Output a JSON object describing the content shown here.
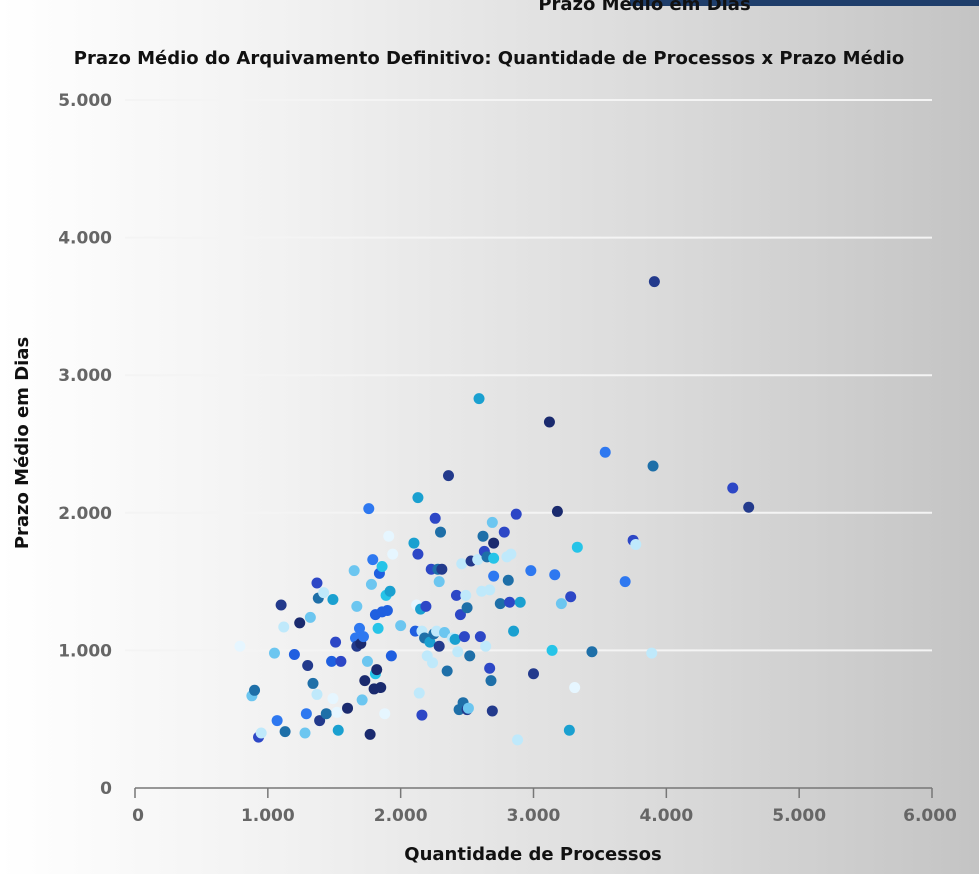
{
  "header": {
    "partial_title": "Prazo Médio em Dias"
  },
  "colors": {
    "point_palette": [
      "#1a2a6e",
      "#233a8c",
      "#2d47c6",
      "#1f5fe0",
      "#2e78f0",
      "#1e6fa8",
      "#1aa0d0",
      "#26c4e8",
      "#6cc6f0",
      "#bfe9fb",
      "#e6f6ff"
    ],
    "accent_bar": "#1f3e6b"
  },
  "chart_data": {
    "type": "scatter",
    "title": "Prazo Médio do Arquivamento Definitivo: Quantidade de Processos x Prazo Médio",
    "xlabel": "Quantidade de Processos",
    "ylabel": "Prazo Médio em Dias",
    "xlim": [
      0,
      6000
    ],
    "ylim": [
      0,
      5000
    ],
    "x_ticks": [
      "0",
      "1.000",
      "2.000",
      "3.000",
      "4.000",
      "5.000",
      "6.000"
    ],
    "y_ticks": [
      "0",
      "1.000",
      "2.000",
      "3.000",
      "4.000",
      "5.000"
    ],
    "grid": "horizontal",
    "points": [
      [
        790,
        1030
      ],
      [
        880,
        670
      ],
      [
        900,
        710
      ],
      [
        930,
        370
      ],
      [
        950,
        400
      ],
      [
        1050,
        980
      ],
      [
        1070,
        490
      ],
      [
        1100,
        1330
      ],
      [
        1120,
        1170
      ],
      [
        1130,
        410
      ],
      [
        1200,
        970
      ],
      [
        1240,
        1200
      ],
      [
        1280,
        400
      ],
      [
        1290,
        540
      ],
      [
        1300,
        890
      ],
      [
        1320,
        1240
      ],
      [
        1340,
        760
      ],
      [
        1370,
        1490
      ],
      [
        1370,
        680
      ],
      [
        1380,
        1380
      ],
      [
        1390,
        490
      ],
      [
        1420,
        1420
      ],
      [
        1440,
        540
      ],
      [
        1480,
        920
      ],
      [
        1490,
        650
      ],
      [
        1490,
        1370
      ],
      [
        1510,
        1060
      ],
      [
        1520,
        550
      ],
      [
        1530,
        420
      ],
      [
        1550,
        920
      ],
      [
        1600,
        580
      ],
      [
        1650,
        1580
      ],
      [
        1660,
        1090
      ],
      [
        1670,
        1030
      ],
      [
        1670,
        1320
      ],
      [
        1690,
        1160
      ],
      [
        1700,
        1050
      ],
      [
        1710,
        640
      ],
      [
        1720,
        1100
      ],
      [
        1730,
        780
      ],
      [
        1750,
        920
      ],
      [
        1760,
        2030
      ],
      [
        1770,
        390
      ],
      [
        1780,
        1480
      ],
      [
        1790,
        1660
      ],
      [
        1800,
        720
      ],
      [
        1810,
        830
      ],
      [
        1810,
        1260
      ],
      [
        1820,
        860
      ],
      [
        1830,
        1160
      ],
      [
        1840,
        1560
      ],
      [
        1850,
        730
      ],
      [
        1860,
        1610
      ],
      [
        1860,
        1280
      ],
      [
        1880,
        540
      ],
      [
        1890,
        1400
      ],
      [
        1900,
        1290
      ],
      [
        1910,
        1830
      ],
      [
        1920,
        1430
      ],
      [
        1930,
        960
      ],
      [
        1940,
        1700
      ],
      [
        2000,
        1180
      ],
      [
        2100,
        1780
      ],
      [
        2110,
        1140
      ],
      [
        2120,
        1330
      ],
      [
        2130,
        2110
      ],
      [
        2130,
        1700
      ],
      [
        2140,
        690
      ],
      [
        2150,
        1300
      ],
      [
        2160,
        530
      ],
      [
        2160,
        1140
      ],
      [
        2180,
        1090
      ],
      [
        2190,
        1320
      ],
      [
        2200,
        960
      ],
      [
        2220,
        1060
      ],
      [
        2230,
        1590
      ],
      [
        2240,
        910
      ],
      [
        2250,
        1120
      ],
      [
        2260,
        1960
      ],
      [
        2270,
        1140
      ],
      [
        2280,
        1590
      ],
      [
        2290,
        1030
      ],
      [
        2290,
        1500
      ],
      [
        2300,
        1860
      ],
      [
        2310,
        1590
      ],
      [
        2330,
        1130
      ],
      [
        2350,
        850
      ],
      [
        2360,
        2270
      ],
      [
        2390,
        1090
      ],
      [
        2410,
        1080
      ],
      [
        2420,
        1400
      ],
      [
        2430,
        990
      ],
      [
        2440,
        570
      ],
      [
        2450,
        1260
      ],
      [
        2460,
        1630
      ],
      [
        2470,
        620
      ],
      [
        2480,
        1100
      ],
      [
        2490,
        1400
      ],
      [
        2500,
        1310
      ],
      [
        2500,
        570
      ],
      [
        2510,
        580
      ],
      [
        2520,
        960
      ],
      [
        2530,
        1650
      ],
      [
        2580,
        1660
      ],
      [
        2590,
        2830
      ],
      [
        2600,
        1100
      ],
      [
        2610,
        1430
      ],
      [
        2620,
        1830
      ],
      [
        2630,
        1720
      ],
      [
        2640,
        1030
      ],
      [
        2650,
        1680
      ],
      [
        2670,
        870
      ],
      [
        2670,
        1440
      ],
      [
        2680,
        780
      ],
      [
        2690,
        560
      ],
      [
        2690,
        1930
      ],
      [
        2700,
        1540
      ],
      [
        2700,
        1780
      ],
      [
        2700,
        1670
      ],
      [
        2750,
        1340
      ],
      [
        2780,
        1860
      ],
      [
        2800,
        1680
      ],
      [
        2810,
        1510
      ],
      [
        2820,
        1350
      ],
      [
        2830,
        1700
      ],
      [
        2850,
        1140
      ],
      [
        2870,
        1990
      ],
      [
        2880,
        350
      ],
      [
        2900,
        1350
      ],
      [
        2980,
        1580
      ],
      [
        3000,
        830
      ],
      [
        3120,
        2660
      ],
      [
        3140,
        1000
      ],
      [
        3160,
        1550
      ],
      [
        3180,
        2010
      ],
      [
        3210,
        1340
      ],
      [
        3270,
        420
      ],
      [
        3280,
        1390
      ],
      [
        3310,
        730
      ],
      [
        3330,
        1750
      ],
      [
        3440,
        990
      ],
      [
        3540,
        2440
      ],
      [
        3690,
        1500
      ],
      [
        3750,
        1800
      ],
      [
        3770,
        1770
      ],
      [
        3890,
        980
      ],
      [
        3900,
        2340
      ],
      [
        3910,
        3680
      ],
      [
        4500,
        2180
      ],
      [
        4620,
        2040
      ]
    ]
  }
}
